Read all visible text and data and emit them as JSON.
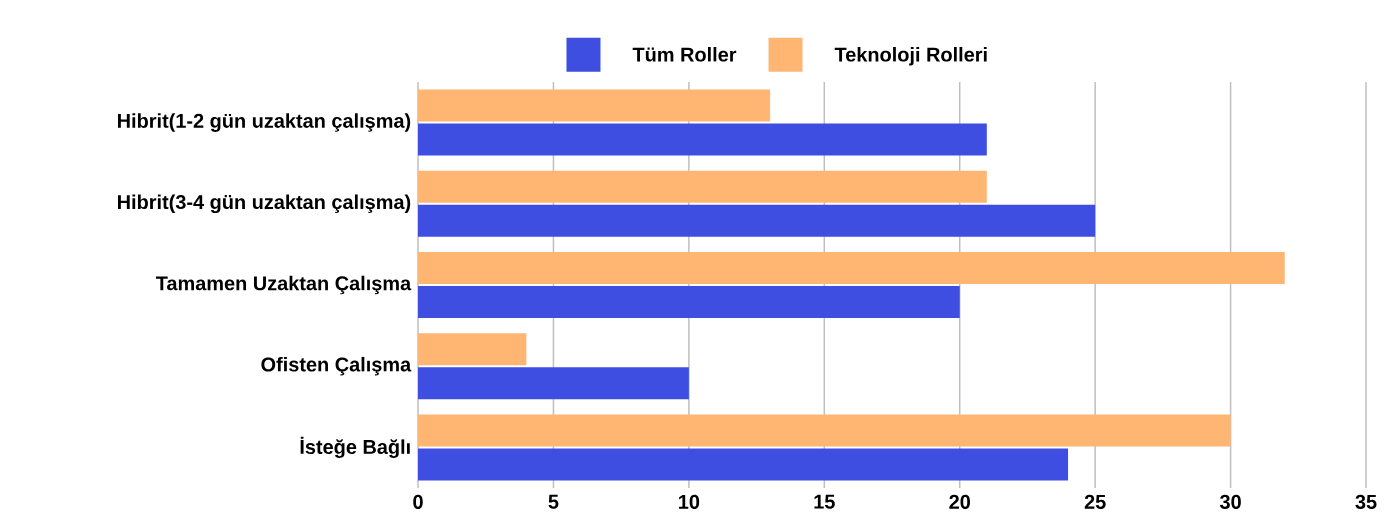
{
  "chart_data": {
    "type": "bar",
    "orientation": "horizontal",
    "categories": [
      "Hibrit(1-2 gün uzaktan çalışma)",
      "Hibrit(3-4 gün uzaktan çalışma)",
      "Tamamen Uzaktan Çalışma",
      "Ofisten Çalışma",
      "İsteğe Bağlı"
    ],
    "series": [
      {
        "name": "Tüm Roller",
        "color": "#3d4ee0",
        "values": [
          21,
          25,
          20,
          10,
          24
        ]
      },
      {
        "name": "Teknoloji Rolleri",
        "color": "#ffb673",
        "values": [
          13,
          21,
          32,
          4,
          30
        ]
      }
    ],
    "xlim": [
      0,
      35
    ],
    "xticks": [
      0,
      5,
      10,
      15,
      20,
      25,
      30,
      35
    ],
    "grid": "x",
    "legend": "top"
  }
}
